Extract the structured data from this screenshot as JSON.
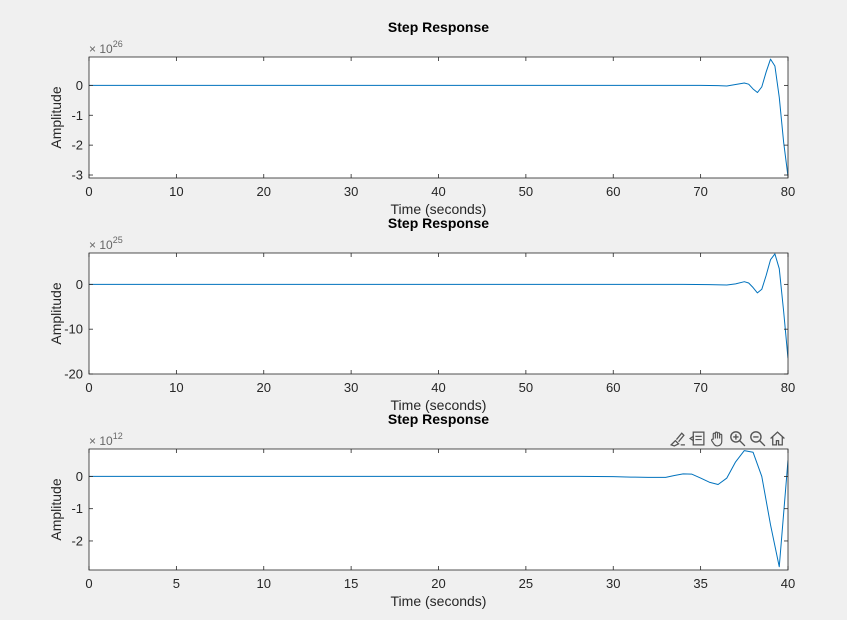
{
  "figure": {
    "background": "#f0f0f0",
    "axes_background": "#ffffff",
    "line_color": "#0072bd",
    "axis_color": "#262626"
  },
  "toolbar": {
    "icons": [
      "brush-icon",
      "data-tips-icon",
      "pan-hand-icon",
      "zoom-in-icon",
      "zoom-out-icon",
      "home-icon"
    ]
  },
  "chart_data": [
    {
      "type": "line",
      "title": "Step Response",
      "xlabel": "Time (seconds)",
      "ylabel": "Amplitude",
      "exponent_base": "× 10",
      "exponent_power": "26",
      "xlim": [
        0,
        80
      ],
      "ylim": [
        -3.1,
        0.95
      ],
      "xticks": [
        0,
        10,
        20,
        30,
        40,
        50,
        60,
        70,
        80
      ],
      "yticks": [
        0,
        -1,
        -2,
        -3
      ],
      "grid": false,
      "series": [
        {
          "x": [
            0,
            60,
            66,
            70,
            72,
            73,
            74,
            75,
            75.5,
            76,
            76.5,
            77,
            77.5,
            78,
            78.5,
            79,
            79.5,
            80
          ],
          "y": [
            0,
            0,
            0,
            0,
            -0.01,
            -0.02,
            0.03,
            0.08,
            0.04,
            -0.12,
            -0.24,
            -0.05,
            0.45,
            0.88,
            0.65,
            -0.4,
            -1.9,
            -3.05
          ]
        }
      ]
    },
    {
      "type": "line",
      "title": "Step Response",
      "xlabel": "Time (seconds)",
      "ylabel": "Amplitude",
      "exponent_base": "× 10",
      "exponent_power": "25",
      "xlim": [
        0,
        80
      ],
      "ylim": [
        -20,
        7
      ],
      "xticks": [
        0,
        10,
        20,
        30,
        40,
        50,
        60,
        70,
        80
      ],
      "yticks": [
        0,
        -10,
        -20
      ],
      "grid": false,
      "series": [
        {
          "x": [
            0,
            60,
            68,
            71,
            73,
            74,
            75,
            75.5,
            76,
            76.5,
            77,
            77.5,
            78,
            78.5,
            79,
            79.5,
            80
          ],
          "y": [
            0,
            0,
            0,
            -0.05,
            -0.15,
            0.1,
            0.6,
            0.3,
            -0.7,
            -1.9,
            -1.1,
            2.0,
            5.5,
            6.8,
            3.5,
            -6.0,
            -16.5
          ]
        }
      ]
    },
    {
      "type": "line",
      "title": "Step Response",
      "xlabel": "Time (seconds)",
      "ylabel": "Amplitude",
      "exponent_base": "× 10",
      "exponent_power": "12",
      "xlim": [
        0,
        40
      ],
      "ylim": [
        -2.9,
        0.85
      ],
      "xticks": [
        0,
        5,
        10,
        15,
        20,
        25,
        30,
        35,
        40
      ],
      "yticks": [
        0,
        -1,
        -2
      ],
      "grid": false,
      "series": [
        {
          "x": [
            0,
            25,
            28,
            30,
            31,
            32,
            33,
            33.5,
            34,
            34.5,
            35,
            35.5,
            36,
            36.5,
            37,
            37.5,
            38,
            38.5,
            39,
            39.5,
            40
          ],
          "y": [
            0,
            0,
            0,
            -0.005,
            -0.02,
            -0.03,
            -0.03,
            0.03,
            0.08,
            0.07,
            -0.05,
            -0.18,
            -0.25,
            -0.05,
            0.45,
            0.8,
            0.75,
            0.0,
            -1.5,
            -2.8,
            0.5
          ]
        }
      ]
    }
  ]
}
